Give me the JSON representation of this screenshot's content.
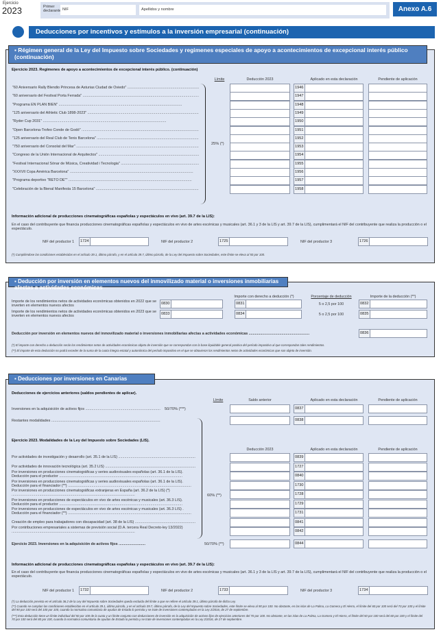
{
  "header": {
    "ejercicio_label": "Ejercicio",
    "year": "2023",
    "declarante_label": "Primer declarante",
    "nif_label": "NIF",
    "nombre_label": "Apellidos y nombre",
    "anexo": "Anexo A.6"
  },
  "title": "Deducciones por incentivos y estímulos a la inversión empresarial (continuación)",
  "colors": {
    "brand": "#1c64b0",
    "band": "#4f7fc0",
    "panel": "#dfe6f3"
  },
  "s1": {
    "band": "Régimen general de la Ley del Impuesto sobre Sociedades y regimenes especiales de apoyo a acontecimientos de excepcional interés público (continuación)",
    "subtitle": "Ejercicio 2023. Regimenes de apoyo a acontecimientos de excepcional interés público. (continuación)",
    "col_limite": "Límite",
    "col_deduccion": "Deducción 2023",
    "col_aplicado": "Aplicado en esta declaración",
    "col_pendiente": "Pendiente de aplicación",
    "limit": "25% (*)",
    "rows": [
      {
        "label": "\"60 Aniversario Rally Blendio Princesa de Asturias Ciudad de Oviedo\"",
        "code": "1946"
      },
      {
        "label": "\"60 aniversario del Festival Porta Ferrada\"",
        "code": "1947"
      },
      {
        "label": "\"Programa EN PLAN BIEN\"",
        "code": "1948"
      },
      {
        "label": "\"125 aniversario del Athletic Club 1898-2023\"",
        "code": "1949"
      },
      {
        "label": "\"Ryder Cup 2031\"",
        "code": "1950"
      },
      {
        "label": "\"Open Barcelona-Trofeo Conde de Godó\"",
        "code": "1951"
      },
      {
        "label": "\"125 aniversario del Real Club de Tenis Barcelona\"",
        "code": "1952"
      },
      {
        "label": "\"750 aniversario del Consolat del Mar\"",
        "code": "1953"
      },
      {
        "label": "\"Congreso de la Unión Internacional de Arquitectos\"",
        "code": "1954"
      },
      {
        "label": "\"Festival Internacional Sónar de Música, Creatividad i Tecnologia\"",
        "code": "1955"
      },
      {
        "label": "\"XXXVII Copa América Barcelona\"",
        "code": "1956"
      },
      {
        "label": "\"Programa deportivo \"RETO DE\"\"",
        "code": "1957"
      },
      {
        "label": "\"Celebración de la Bienal Manifesta 15 Barcelona\"",
        "code": "1958"
      }
    ],
    "info_title": "Información adicional de producciones cinematográficas españolas y espectáculos en vivo (art. 39.7 de la LIS):",
    "info_text": "En el caso del contribuyente que financia producciones cinematográficas españolas y espectáculos en vivo de artes escénicas y musicales (art. 36.1 y 3 de la LIS y art. 39.7 de la LIS), cumplimentará el NIF del contribuyente que realiza la producción o el espectáculo.",
    "nifs": [
      {
        "label": "NIF del productor 1",
        "code": "1724"
      },
      {
        "label": "NIF del productor 2",
        "code": "1725"
      },
      {
        "label": "NIF del productor 3",
        "code": "1726"
      }
    ],
    "footnote": "(*)   Cumpliéndose las condiciones establecidas en el artículo 39.1, último párrafo, y en el artículo 39.7, último párrafo, de la Ley del Impuesto sobre Sociedades, este límite se eleva al 50 por 100."
  },
  "s2": {
    "band": "Deducción por inversión en elementos nuevos del inmovilizado material o inversiones inmobiliarias afectas a actividades económicas",
    "col_importe": "Importe con derecho a deducción (*)",
    "col_porcentaje": "Porcentaje de deducción",
    "col_deduccion": "Importe de la deducción (**)",
    "rows": [
      {
        "label": "Importe de los rendimientos netos de actividades económicas obtenidos en 2022 que se inverten en elementos nuevos afectos",
        "code1": "0830",
        "code2": "0831",
        "pct": "5 o 2,5 por 100",
        "code3": "0832"
      },
      {
        "label": "Importe de los rendimientos netos de actividades económicas obtenidos en 2023 que se inverten en elementos nuevos afectos",
        "code1": "0833",
        "code2": "0834",
        "pct": "5 o 2,5 por 100",
        "code3": "0835"
      }
    ],
    "total_label": "Deducción por inversión en elementos nuevos del inmovilizado material o inversiones inmobiliarias afectas a actividades económicas",
    "total_code": "0836",
    "foot1": "(*)  El importe con derecho a deducción serán los rendimientos netos de actividades económicas objeto de inversión que se correspondan con la base liquidable general positiva del período impositivo al que correspondan tales rendimientos.",
    "foot2": "(**) El importe de esta deducción no podrá exceder de la suma de la cuota íntegra estatal y autonómica del período impositivo en el que se obtuvieron los rendimientos netos de actividades económicas que son objeto de inversión."
  },
  "s3": {
    "band": "Deducciones por inversiones en Canarias",
    "prev_title": "Deducciones de ejercicios anteriores (saldos pendientes de aplicar).",
    "col_limite": "Límite",
    "col_saldo": "Saldo anterior",
    "col_aplicado": "Aplicado en esta declaración",
    "col_pendiente": "Pendiente de aplicación",
    "prev_rows": [
      {
        "label": "Inversiones en la adquisición de activos fijos",
        "limit": "50/70% (***)",
        "code": "0837"
      },
      {
        "label": "Restantes modalidades",
        "limit": "",
        "code": "0838"
      }
    ],
    "cur_title": "Ejercicio 2023. Modalidades de la Ley del Impuesto sobre Sociedades (LIS).",
    "col_deduccion": "Deducción 2023",
    "limit": "60% (**)",
    "rows": [
      {
        "label": "Por actividades de investigación y desarrollo (art. 35.1 de la LIS)",
        "code": "0839"
      },
      {
        "label": "Por actividades de innovación tecnológica (art. 35.2 LIS)",
        "code": "1727"
      },
      {
        "label": "Por inversiones en producciones cinematográficas y series audiovisuales españolas (art. 36.1 de la LIS). Deducción para el productor",
        "code": "0840"
      },
      {
        "label": "Por inversiones en producciones cinematográficas y series audiovisuales españolas (art. 36.1 de la LIS). Deducción para el financiador (**)",
        "code": "1730"
      },
      {
        "label": "Por inversiones en producciones cinematográficas extranjeras en España (art. 36.2 de la LIS) (*)",
        "code": "1728"
      },
      {
        "label": "Por inversiones en producciones de espectáculos en vivo de artes escénicas y musicales (art. 36.3 LIS). Deducción para el productor",
        "code": "1729"
      },
      {
        "label": "Por inversiones en producciones de espectáculos en vivo de artes escénicas y musicales (art. 36.3 LIS) . Deducción para el financiador (**)",
        "code": "1731"
      },
      {
        "label": "Creación de empleo para trabajadores con discapacidad (art. 38 de la LIS)",
        "code": "0841"
      },
      {
        "label": "Por contribuciones empresariales a sistemas de previsión social (D.A. tercera Real Decreto-ley 13/2022)",
        "code": "0842"
      }
    ],
    "fixed_label": "Ejercicio 2023. Inversiones en la adquisición de activos fijos",
    "fixed_limit": "50/70% (**)",
    "fixed_code": "0844",
    "info_title": "Información adicional de producciones cinematográficas españolas y espectáculos en vivo (art. 39.7 de la LIS):",
    "info_text": "En el caso del contribuyente que financia producciones cinematográficas españolas y espectáculos en vivo de artes escénicas y musicales (art. 36.1 y 3 de la LIS y art. 39.7 de la LIS), cumplimentará el NIF del contribuyente que realiza la producción o el espectáculo.",
    "nifs": [
      {
        "label": "NIF del productor 1",
        "code": "1732"
      },
      {
        "label": "NIF del productor 2",
        "code": "1733"
      },
      {
        "label": "NIF del productor 3",
        "code": "1734"
      }
    ],
    "foot1": "(*)   La deducción prevista en el artículo 36.2 de la Ley del Impuesto sobre Sociedades queda excluida del límite a que se refiere el artículo 39.1, último párrafo de dicha Ley.",
    "foot2": "(**)   Cuando se cumplan las condiciones establecidas en el artículo 39.1, último párrafo, y en el artículo 39.7, último párrafo, de la Ley del Impuesto sobre Sociedades, este límite se eleva al 90 por 100. No obstante, en las islas de La Palma, La Gomera y El Hierro, el límite del 60 por 100 será del 70 por 100 y el límite del 90 por 100 será del 100 por 100, cuando la normativa comunitaria de ayudas de Estado lo permita y se trate de inversiones contempladas en la Ley 2/2016, de 27 de septiembre.",
    "foot3": "(***) Esta deducción tiene un límite individual del 50 por 100 de la cuota y un límite conjunto con deducciones de inversión en la adquisición de activos fijos de ejercicios anteriores del 70 por 100. No obstante, en las islas de La Palma, La Gomera y El Hierro, el límite del 50 por 100 será del 60 por 100 y el límite del 70 por 100 será del 80 por 100, cuando la normativa comunitaria de ayudas de Estado lo permita y se trate de inversiones contempladas en la Ley 2/2016, de 27 de septiembre."
  }
}
